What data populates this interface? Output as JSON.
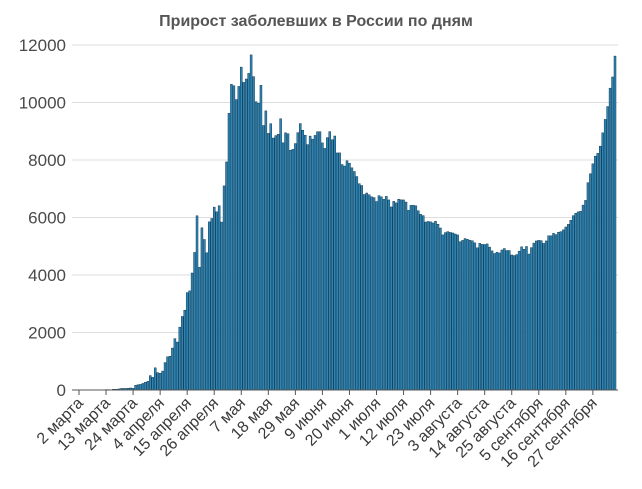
{
  "chart_data": {
    "type": "bar",
    "title": "Прирост заболевших в России по дням",
    "ylim": [
      0,
      12000
    ],
    "y_ticks": [
      0,
      2000,
      4000,
      6000,
      8000,
      10000,
      12000
    ],
    "grid": true,
    "bar_color": "#2b86b6",
    "bar_edge_color": "#10324a",
    "categories": [
      "2 марта",
      "",
      "",
      "",
      "",
      "",
      "",
      "",
      "",
      "",
      "",
      "13 марта",
      "",
      "",
      "",
      "",
      "",
      "",
      "",
      "",
      "",
      "",
      "24 марта",
      "",
      "",
      "",
      "",
      "",
      "",
      "",
      "",
      "",
      "",
      "4 апреля",
      "",
      "",
      "",
      "",
      "",
      "",
      "",
      "",
      "",
      "",
      "15 апреля",
      "",
      "",
      "",
      "",
      "",
      "",
      "",
      "",
      "",
      "",
      "26 апреля",
      "",
      "",
      "",
      "",
      "",
      "",
      "",
      "",
      "",
      "",
      "7 мая",
      "",
      "",
      "",
      "",
      "",
      "",
      "",
      "",
      "",
      "",
      "18 мая",
      "",
      "",
      "",
      "",
      "",
      "",
      "",
      "",
      "",
      "",
      "29 мая",
      "",
      "",
      "",
      "",
      "",
      "",
      "",
      "",
      "",
      "",
      "9 июня",
      "",
      "",
      "",
      "",
      "",
      "",
      "",
      "",
      "",
      "",
      "20 июня",
      "",
      "",
      "",
      "",
      "",
      "",
      "",
      "",
      "",
      "",
      "1 июля",
      "",
      "",
      "",
      "",
      "",
      "",
      "",
      "",
      "",
      "",
      "12 июля",
      "",
      "",
      "",
      "",
      "",
      "",
      "",
      "",
      "",
      "",
      "23 июля",
      "",
      "",
      "",
      "",
      "",
      "",
      "",
      "",
      "",
      "",
      "3 августа",
      "",
      "",
      "",
      "",
      "",
      "",
      "",
      "",
      "",
      "",
      "14 августа",
      "",
      "",
      "",
      "",
      "",
      "",
      "",
      "",
      "",
      "",
      "25 августа",
      "",
      "",
      "",
      "",
      "",
      "",
      "",
      "",
      "",
      "",
      "5 сентября",
      "",
      "",
      "",
      "",
      "",
      "",
      "",
      "",
      "",
      "",
      "16 сентября",
      "",
      "",
      "",
      "",
      "",
      "",
      "",
      "",
      "",
      "",
      "27 сентября",
      "",
      "",
      "",
      "",
      "",
      "",
      "",
      "",
      ""
    ],
    "values": [
      1,
      0,
      1,
      1,
      6,
      0,
      3,
      0,
      3,
      8,
      6,
      14,
      14,
      4,
      27,
      24,
      33,
      52,
      54,
      53,
      61,
      71,
      57,
      163,
      182,
      196,
      228,
      270,
      302,
      501,
      440,
      771,
      601,
      582,
      658,
      954,
      1154,
      1175,
      1459,
      1786,
      1667,
      2186,
      2558,
      2774,
      3388,
      3448,
      4070,
      4785,
      6060,
      4268,
      5642,
      5236,
      4774,
      5849,
      5966,
      6361,
      6198,
      6411,
      5841,
      7099,
      7933,
      9623,
      10633,
      10581,
      10102,
      10559,
      11231,
      10699,
      10817,
      11012,
      11656,
      10899,
      10028,
      9974,
      10598,
      9200,
      9709,
      8926,
      9263,
      8764,
      8849,
      8894,
      9434,
      8599,
      8946,
      8915,
      8338,
      8371,
      8572,
      8952,
      9268,
      9035,
      8863,
      8536,
      8831,
      8726,
      8855,
      8984,
      8985,
      8595,
      8404,
      8779,
      8987,
      8706,
      8835,
      8246,
      8248,
      7843,
      7790,
      7972,
      7889,
      7728,
      7600,
      7425,
      7176,
      7113,
      6800,
      6852,
      6791,
      6719,
      6693,
      6556,
      6760,
      6718,
      6632,
      6736,
      6611,
      6368,
      6562,
      6509,
      6635,
      6615,
      6611,
      6537,
      6248,
      6422,
      6428,
      6406,
      6234,
      6109,
      6065,
      5842,
      5862,
      5848,
      5811,
      5871,
      5765,
      5635,
      5395,
      5475,
      5509,
      5482,
      5462,
      5427,
      5394,
      5159,
      5204,
      5267,
      5241,
      5212,
      5189,
      5118,
      4945,
      5102,
      5065,
      5061,
      5081,
      4969,
      4839,
      4748,
      4790,
      4767,
      4870,
      4921,
      4852,
      4852,
      4696,
      4676,
      4711,
      4829,
      4980,
      4897,
      4993,
      4729,
      4952,
      5110,
      5185,
      5205,
      5195,
      5099,
      5185,
      5363,
      5363,
      5449,
      5406,
      5488,
      5509,
      5572,
      5670,
      5762,
      5905,
      6065,
      6148,
      6196,
      6215,
      6431,
      6595,
      7212,
      7523,
      7867,
      8135,
      8232,
      8481,
      8945,
      9412,
      9859,
      10499,
      10888,
      11615
    ]
  }
}
